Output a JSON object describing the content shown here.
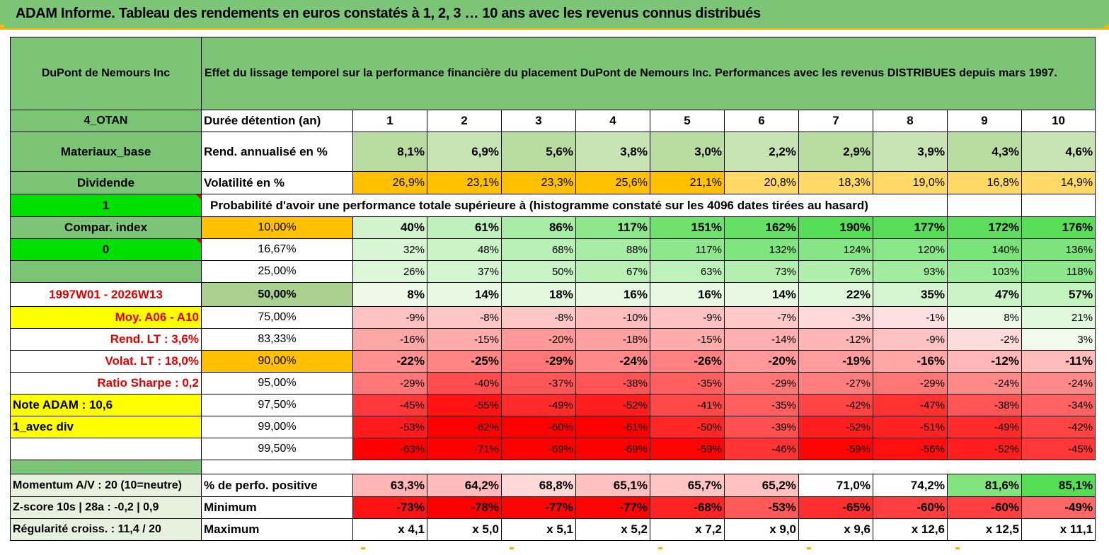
{
  "header": {
    "title": "ADAM Informe. Tableau des rendements en euros constatés à 1, 2, 3 … 10 ans avec les revenus connus distribués"
  },
  "intro": {
    "name": "DuPont de Nemours Inc",
    "description": "Effet du lissage temporel sur la performance financière du placement DuPont de Nemours Inc. Performances avec les revenus DISTRIBUES depuis mars 1997."
  },
  "side": {
    "code": "4_OTAN",
    "sector": "Materiaux_base",
    "type": "Dividende",
    "flag1": "1",
    "compar": "Compar. index",
    "flag0": "0",
    "period": "1997W01 - 2026W13",
    "moy": "Moy. A06 - A10",
    "rend_lt": "Rend. LT :   3,6%",
    "volat_lt": "Volat. LT :   18,0%",
    "sharpe": "Ratio Sharpe :    0,2",
    "note": "Note ADAM : 10,6",
    "avec_div": "1_avec div",
    "momentum": "Momentum A/V : 20 (10=neutre)",
    "zscore": "Z-score 10s | 28a : -0,2 | 0,9",
    "regularite": "Régularité croiss. : 11,4 / 20"
  },
  "labels": {
    "duree": "Durée détention (an)",
    "rend": "Rend. annualisé en %",
    "vol": "Volatilité en %",
    "proba": "Probabilité d'avoir une performance totale supérieure à (histogramme constaté sur les 4096 dates tirées au hasard)",
    "perf_pos": "% de perfo. positive",
    "min": "Minimum",
    "max": "Maximum"
  },
  "years": [
    "1",
    "2",
    "3",
    "4",
    "5",
    "6",
    "7",
    "8",
    "9",
    "10"
  ],
  "rend": [
    "8,1%",
    "6,9%",
    "5,6%",
    "3,8%",
    "3,0%",
    "2,2%",
    "2,9%",
    "3,9%",
    "4,3%",
    "4,6%"
  ],
  "vol": [
    "26,9%",
    "23,1%",
    "23,3%",
    "25,6%",
    "21,1%",
    "20,8%",
    "18,3%",
    "19,0%",
    "16,8%",
    "14,9%"
  ],
  "proba_rows": [
    {
      "pct": "10,00%",
      "vals": [
        "40%",
        "61%",
        "86%",
        "117%",
        "151%",
        "162%",
        "190%",
        "177%",
        "172%",
        "176%"
      ]
    },
    {
      "pct": "16,67%",
      "vals": [
        "32%",
        "48%",
        "68%",
        "88%",
        "117%",
        "132%",
        "124%",
        "120%",
        "140%",
        "136%"
      ]
    },
    {
      "pct": "25,00%",
      "vals": [
        "26%",
        "37%",
        "50%",
        "67%",
        "63%",
        "73%",
        "76%",
        "93%",
        "103%",
        "118%"
      ]
    },
    {
      "pct": "50,00%",
      "vals": [
        "8%",
        "14%",
        "18%",
        "16%",
        "16%",
        "14%",
        "22%",
        "35%",
        "47%",
        "57%"
      ]
    },
    {
      "pct": "75,00%",
      "vals": [
        "-9%",
        "-8%",
        "-8%",
        "-10%",
        "-9%",
        "-7%",
        "-3%",
        "-1%",
        "8%",
        "21%"
      ]
    },
    {
      "pct": "83,33%",
      "vals": [
        "-16%",
        "-15%",
        "-20%",
        "-18%",
        "-15%",
        "-14%",
        "-12%",
        "-9%",
        "-2%",
        "3%"
      ]
    },
    {
      "pct": "90,00%",
      "vals": [
        "-22%",
        "-25%",
        "-29%",
        "-24%",
        "-26%",
        "-20%",
        "-19%",
        "-16%",
        "-12%",
        "-11%"
      ]
    },
    {
      "pct": "95,00%",
      "vals": [
        "-29%",
        "-40%",
        "-37%",
        "-38%",
        "-35%",
        "-29%",
        "-27%",
        "-29%",
        "-24%",
        "-24%"
      ]
    },
    {
      "pct": "97,50%",
      "vals": [
        "-45%",
        "-55%",
        "-49%",
        "-52%",
        "-41%",
        "-35%",
        "-42%",
        "-47%",
        "-38%",
        "-34%"
      ]
    },
    {
      "pct": "99,00%",
      "vals": [
        "-53%",
        "-62%",
        "-60%",
        "-61%",
        "-50%",
        "-39%",
        "-52%",
        "-51%",
        "-49%",
        "-42%"
      ]
    },
    {
      "pct": "99,50%",
      "vals": [
        "-63%",
        "-71%",
        "-69%",
        "-69%",
        "-59%",
        "-46%",
        "-59%",
        "-56%",
        "-52%",
        "-45%"
      ]
    }
  ],
  "perf_pos": [
    "63,3%",
    "64,2%",
    "68,8%",
    "65,1%",
    "65,7%",
    "65,2%",
    "71,0%",
    "74,2%",
    "81,6%",
    "85,1%"
  ],
  "minimum": [
    "-73%",
    "-78%",
    "-77%",
    "-77%",
    "-68%",
    "-53%",
    "-65%",
    "-60%",
    "-60%",
    "-49%"
  ],
  "maximum": [
    "x 4,1",
    "x 5,0",
    "x 5,1",
    "x 5,2",
    "x 7,2",
    "x 9,0",
    "x 9,6",
    "x 12,6",
    "x 12,5",
    "x 11,1"
  ],
  "colors": {
    "header_green": "#7cc576",
    "bright_green": "#00e000",
    "orange": "#ffc000",
    "yellow": "#ffff00",
    "negative_red": "#ff0000",
    "positive_green": "#63be7b"
  }
}
